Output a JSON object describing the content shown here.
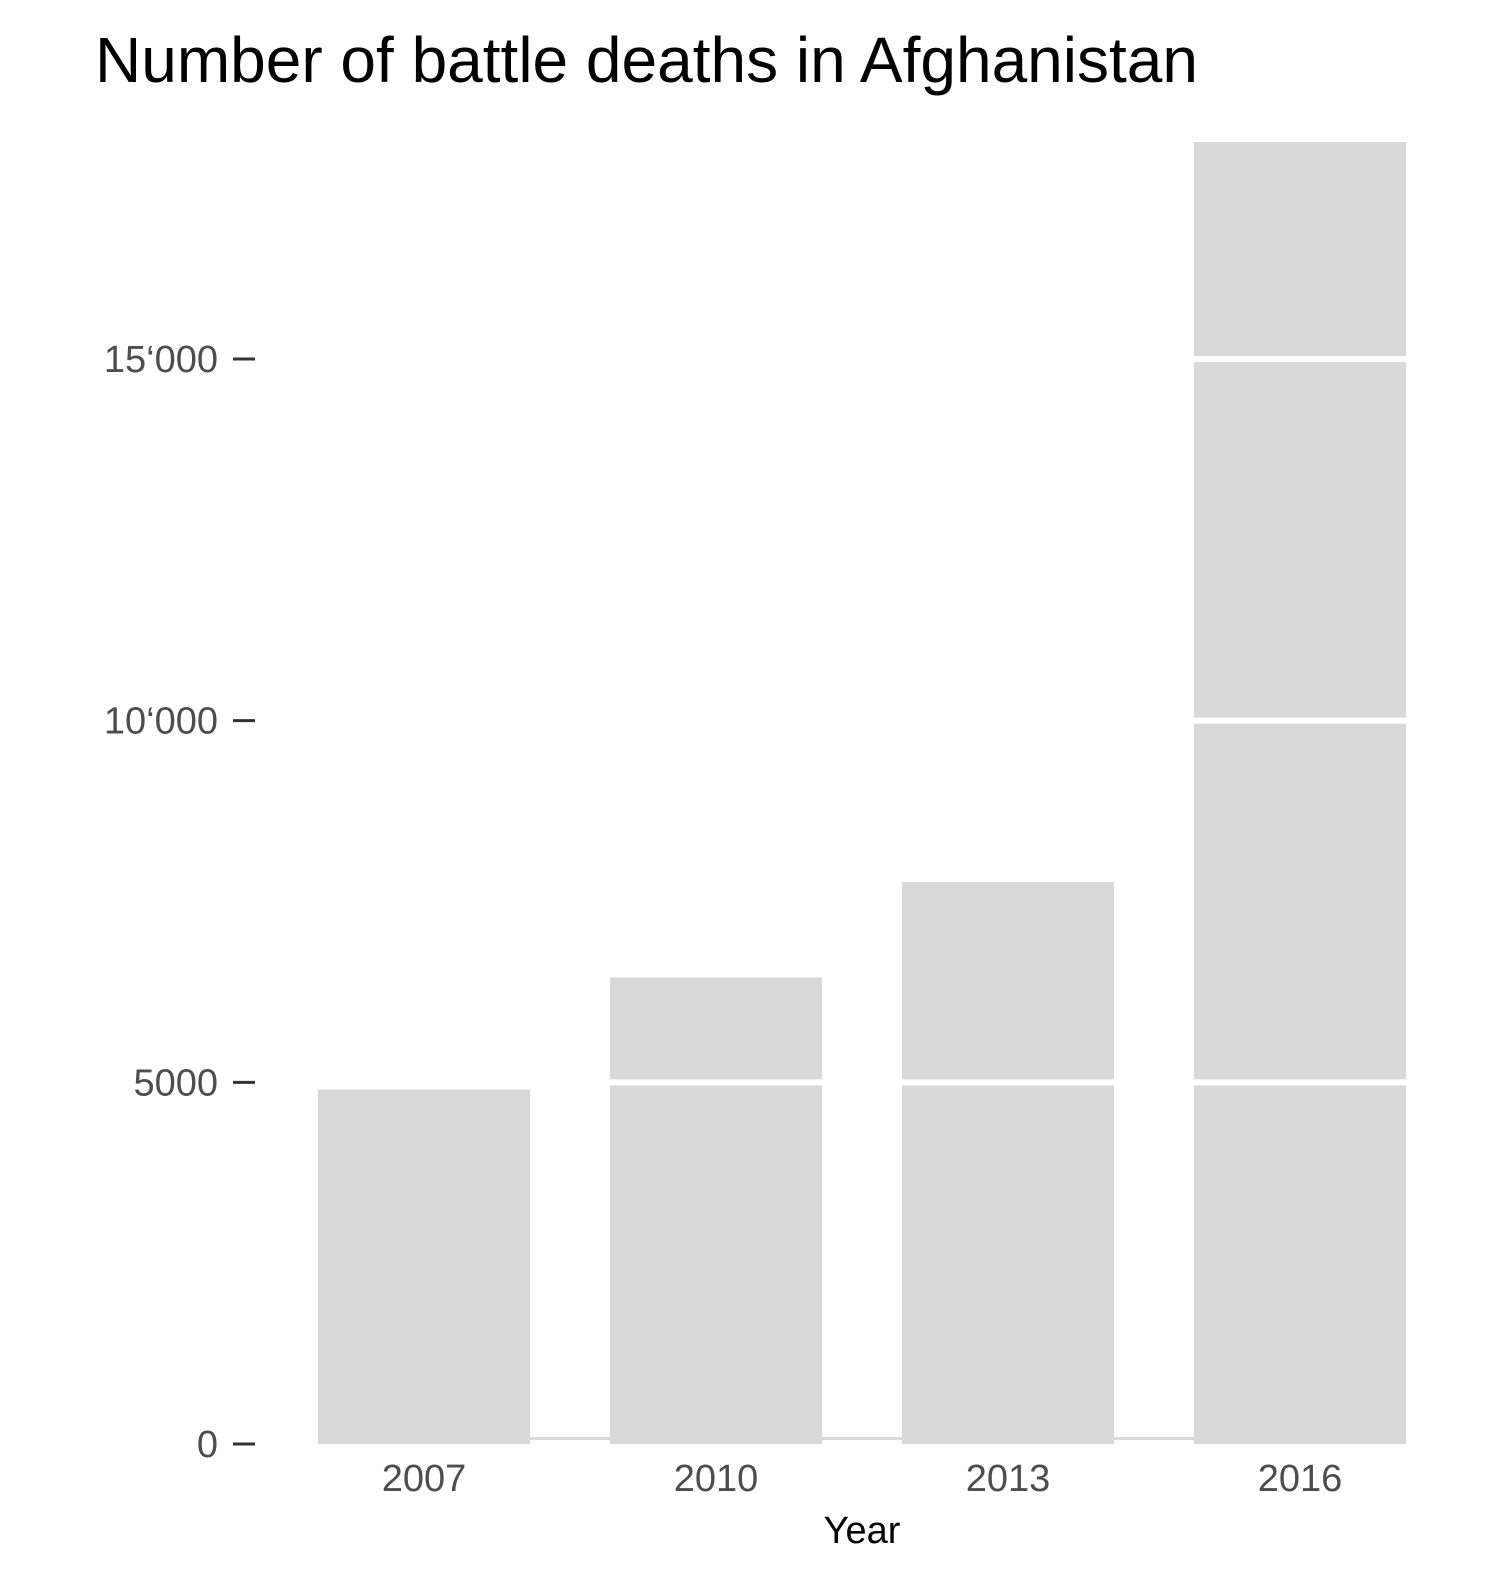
{
  "chart_data": {
    "type": "bar",
    "title": "Number of battle deaths in Afghanistan",
    "xlabel": "Year",
    "ylabel": "",
    "categories": [
      "2007",
      "2010",
      "2013",
      "2016"
    ],
    "values": [
      4900,
      6450,
      7770,
      18000
    ],
    "ylim": [
      0,
      18000
    ],
    "yticks": [
      0,
      5000,
      10000,
      15000
    ],
    "ytick_labels": [
      "0",
      "5000",
      "10‘000",
      "15‘000"
    ],
    "segment_size": 5000,
    "grid": false,
    "bar_color": "#d9d9d9",
    "background": "#ffffff"
  }
}
